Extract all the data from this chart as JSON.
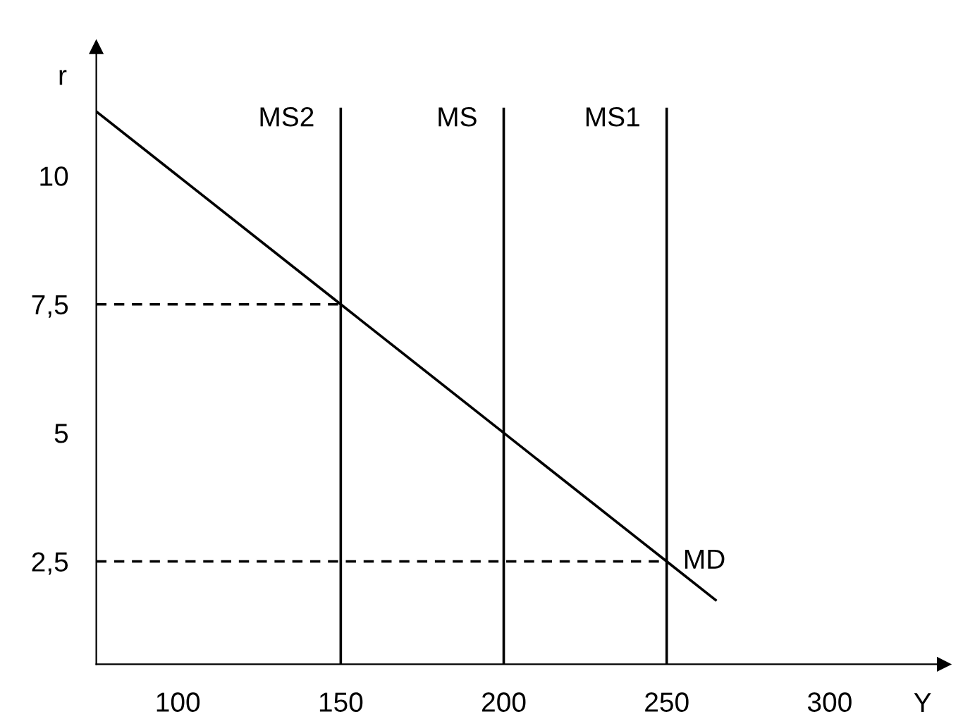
{
  "chart_data": {
    "type": "line",
    "xlabel": "Y",
    "ylabel": "r",
    "xlim": [
      75,
      335
    ],
    "ylim": [
      0.5,
      12.5
    ],
    "xticks": [
      100,
      150,
      200,
      250,
      300
    ],
    "yticks": [
      {
        "value": 2.5,
        "label": "2,5"
      },
      5,
      {
        "value": 7.5,
        "label": "7,5"
      },
      10
    ],
    "series": [
      {
        "name": "MD",
        "color": "#000000",
        "x": [
          75,
          150,
          200,
          250,
          265
        ],
        "values": [
          11.25,
          7.5,
          5,
          2.5,
          1.75
        ]
      },
      {
        "color": "#000000",
        "line_style": "dashed",
        "x": [
          75,
          150
        ],
        "values": [
          7.5,
          7.5
        ]
      },
      {
        "color": "#000000",
        "line_style": "dashed",
        "x": [
          75,
          250
        ],
        "values": [
          2.5,
          2.5
        ]
      }
    ],
    "ref_lines": [
      {
        "axis": "x",
        "value": 150,
        "label": "MS2"
      },
      {
        "axis": "x",
        "value": 200,
        "label": "MS"
      },
      {
        "axis": "x",
        "value": 250,
        "label": "MS1"
      }
    ],
    "grid": false,
    "legend": false
  }
}
